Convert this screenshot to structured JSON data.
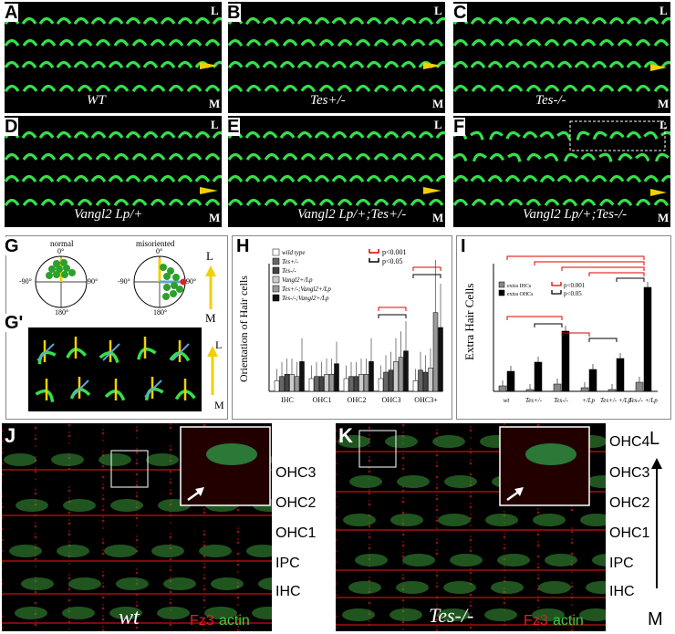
{
  "panel_letters": [
    "A",
    "B",
    "C",
    "D",
    "E",
    "F",
    "G",
    "G'",
    "H",
    "I",
    "J",
    "K"
  ],
  "micro_top": [
    {
      "letter": "A",
      "label": "WT"
    },
    {
      "letter": "B",
      "label": "Tes+/-"
    },
    {
      "letter": "C",
      "label": "Tes-/-"
    },
    {
      "letter": "D",
      "label": "Vangl2 Lp/+"
    },
    {
      "letter": "E",
      "label": "Vangl2 Lp/+;Tes+/-"
    },
    {
      "letter": "F",
      "label": "Vangl2 Lp/+;Tes-/-"
    }
  ],
  "axis_L": "L",
  "axis_M": "M",
  "g_panel": {
    "normal": "normal",
    "misoriented": "misoriented",
    "deg0": "0°",
    "deg90": "90°",
    "degm90": "-90°",
    "deg180": "180°"
  },
  "chart_data": [
    {
      "type": "bar",
      "ylabel": "Orientation of Hair cells",
      "categories": [
        "IHC",
        "OHC1",
        "OHC2",
        "OHC3",
        "OHC3+"
      ],
      "legend": [
        "wild type",
        "Tes+/-",
        "Tes-/-",
        "Vangl2+/Lp",
        "Tes+/-;Vangl2+/Lp",
        "Tes-/-;Vangl2+/Lp"
      ],
      "sig_legend": [
        "p<0.001",
        "p<0.05"
      ],
      "series": [
        {
          "name": "wild type",
          "values": [
            5,
            6,
            6,
            6,
            5
          ]
        },
        {
          "name": "Tes+/-",
          "values": [
            7,
            7,
            7,
            9,
            10
          ]
        },
        {
          "name": "Tes-/-",
          "values": [
            8,
            7,
            7,
            10,
            9
          ]
        },
        {
          "name": "Vangl2+/Lp",
          "values": [
            8,
            8,
            8,
            14,
            11
          ]
        },
        {
          "name": "Tes+/-;Vangl2+/Lp",
          "values": [
            7,
            8,
            8,
            16,
            37
          ]
        },
        {
          "name": "Tes-/-;Vangl2+/Lp",
          "values": [
            14,
            13,
            14,
            19,
            30
          ]
        }
      ],
      "ylim": [
        0,
        60
      ]
    },
    {
      "type": "bar",
      "ylabel": "Extra Hair Cells",
      "categories": [
        "wt",
        "Tes+/-",
        "Tes-/-",
        "+/Lp",
        "Tes+/- +/Lp",
        "Tes-/- +/Lp"
      ],
      "legend": [
        "extra IHCs",
        "extra OHCs"
      ],
      "sig_legend": [
        "p<0.001",
        "p<0.05"
      ],
      "series": [
        {
          "name": "extra IHCs",
          "values": [
            3,
            1,
            4,
            2,
            1,
            5
          ]
        },
        {
          "name": "extra OHCs",
          "values": [
            11,
            16,
            33,
            12,
            18,
            57
          ]
        }
      ],
      "ylim": [
        0,
        70
      ]
    }
  ],
  "bottom": {
    "j_label": "wt",
    "k_label": "Tes-/-",
    "fz3": "Fz3",
    "actin": "actin",
    "rows_j": [
      "OHC3",
      "OHC2",
      "OHC1",
      "IPC",
      "IHC"
    ],
    "rows_k": [
      "OHC4",
      "OHC3",
      "OHC2",
      "OHC1",
      "IPC",
      "IHC"
    ],
    "axis_L": "L",
    "axis_M": "M"
  }
}
